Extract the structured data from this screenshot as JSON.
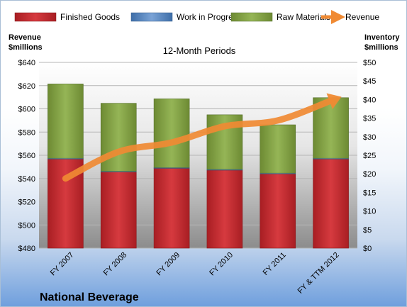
{
  "chart_data": {
    "type": "bar",
    "company": "National Beverage",
    "subtitle": "12-Month Periods",
    "left_axis_title": [
      "Revenue",
      "$millions"
    ],
    "right_axis_title": [
      "Inventory",
      "$millions"
    ],
    "categories": [
      "FY 2007",
      "FY 2008",
      "FY 2009",
      "FY 2010",
      "FY 2011",
      "FY & TTM 2012"
    ],
    "left_ylim": [
      480,
      640
    ],
    "left_ticks": [
      "$480",
      "$500",
      "$520",
      "$540",
      "$560",
      "$580",
      "$600",
      "$620",
      "$640"
    ],
    "right_ylim": [
      0,
      50
    ],
    "right_ticks": [
      "$0",
      "$5",
      "$10",
      "$15",
      "$20",
      "$25",
      "$30",
      "$35",
      "$40",
      "$45",
      "$50"
    ],
    "series": [
      {
        "name": "Finished Goods",
        "axis": "right",
        "stacked": true,
        "color": "#c0272d",
        "values": [
          24.0,
          20.5,
          21.5,
          21.0,
          20.0,
          24.0
        ]
      },
      {
        "name": "Work in Progress",
        "axis": "right",
        "stacked": true,
        "color": "#4f81bd",
        "values": [
          0.2,
          0.2,
          0.2,
          0.2,
          0.2,
          0.2
        ]
      },
      {
        "name": "Raw Materials",
        "axis": "right",
        "stacked": true,
        "color": "#7f9f3f",
        "values": [
          20.0,
          18.3,
          18.5,
          14.7,
          13.0,
          16.3
        ]
      },
      {
        "name": "Revenue",
        "axis": "left",
        "type": "line",
        "color": "#f08a33",
        "values": [
          540,
          563,
          571,
          585,
          590,
          607
        ]
      }
    ],
    "grid": true,
    "legend_position": "top"
  }
}
